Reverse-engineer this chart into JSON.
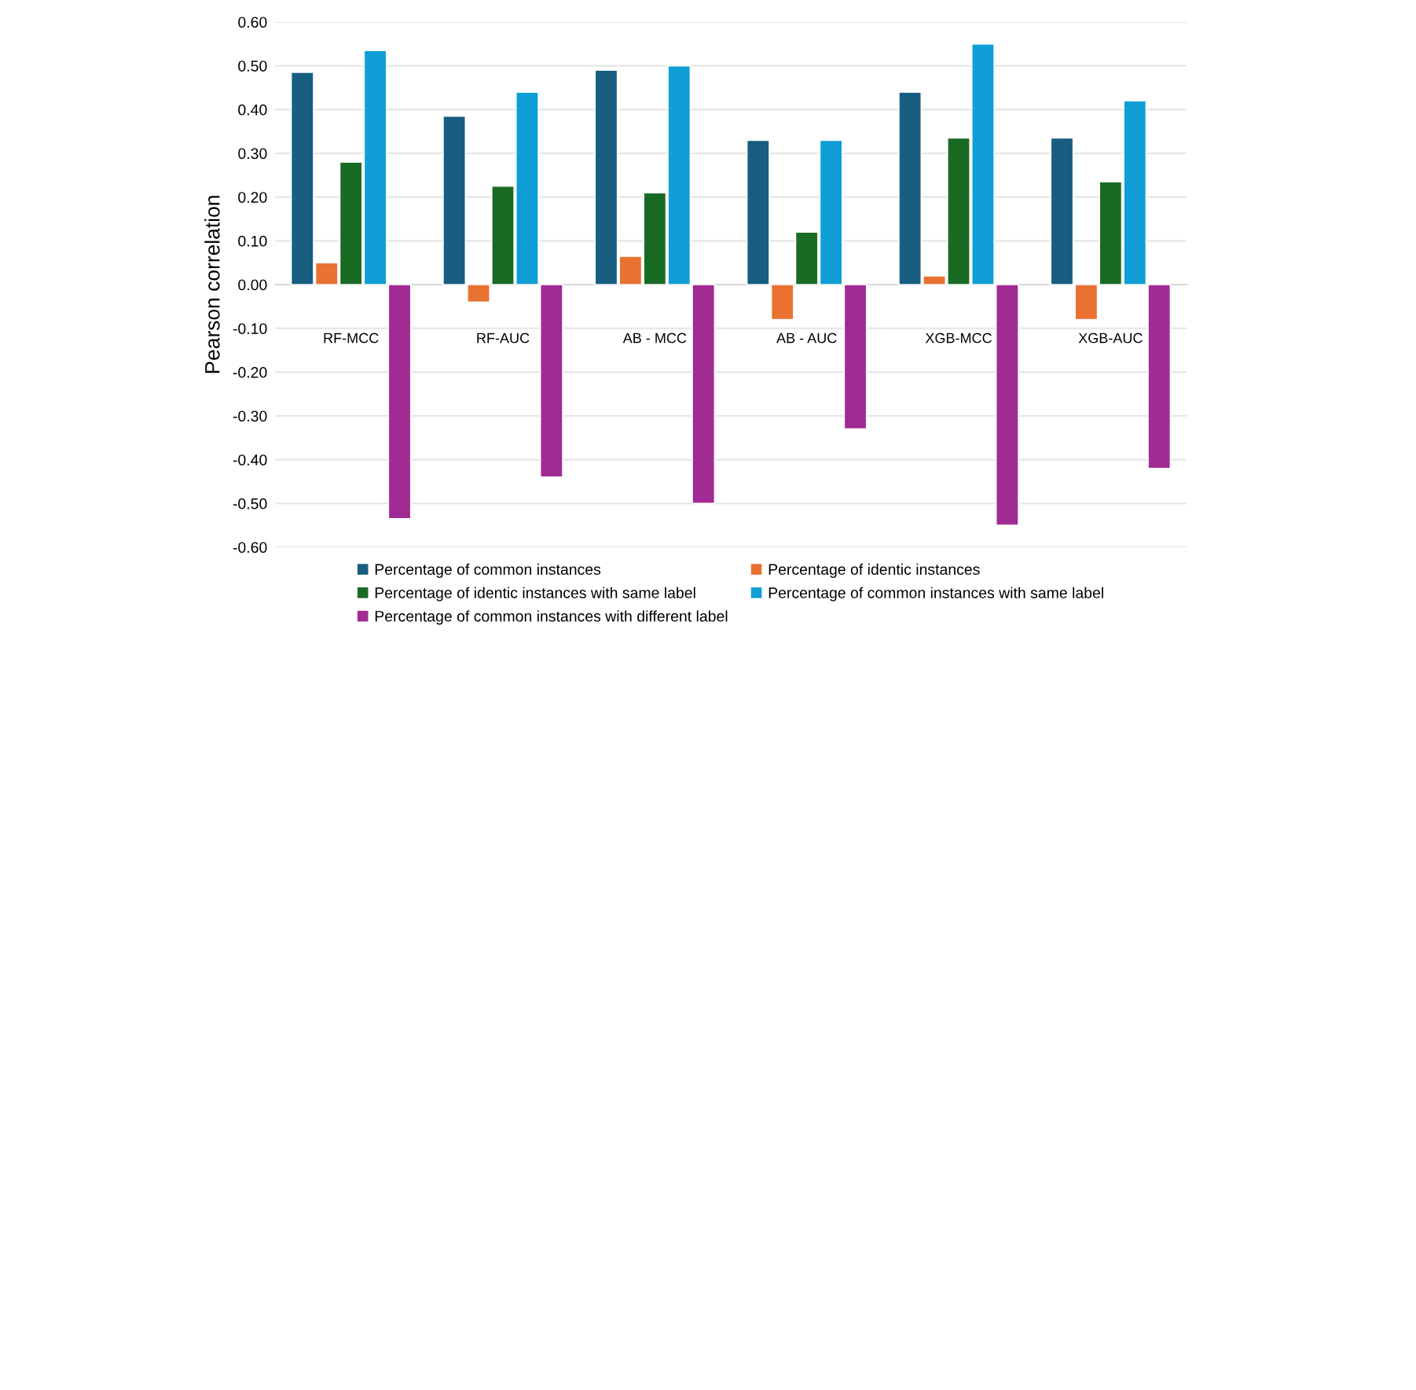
{
  "chart_data": {
    "type": "bar",
    "ylabel": "Pearson correlation",
    "categories": [
      "RF-MCC",
      "RF-AUC",
      "AB - MCC",
      "AB - AUC",
      "XGB-MCC",
      "XGB-AUC"
    ],
    "series": [
      {
        "name": "Percentage of common instances",
        "color": "#175e80",
        "values": [
          0.485,
          0.385,
          0.49,
          0.33,
          0.44,
          0.335
        ]
      },
      {
        "name": "Percentage of identic instances",
        "color": "#e97132",
        "values": [
          0.05,
          -0.04,
          0.065,
          -0.08,
          0.02,
          -0.08
        ]
      },
      {
        "name": "Percentage of identic instances with same label",
        "color": "#196b24",
        "values": [
          0.28,
          0.225,
          0.21,
          0.12,
          0.335,
          0.235
        ]
      },
      {
        "name": "Percentage of common instances with same label",
        "color": "#0f9ed5",
        "values": [
          0.535,
          0.44,
          0.5,
          0.33,
          0.55,
          0.42
        ]
      },
      {
        "name": "Percentage of common instances with different label",
        "color": "#a02b93",
        "values": [
          -0.535,
          -0.44,
          -0.5,
          -0.33,
          -0.55,
          -0.42
        ]
      }
    ],
    "ylim": [
      -0.6,
      0.6
    ],
    "yticks": [
      {
        "value": -0.6,
        "label": "-0.60"
      },
      {
        "value": -0.5,
        "label": "-0.50"
      },
      {
        "value": -0.4,
        "label": "-0.40"
      },
      {
        "value": -0.3,
        "label": "-0.30"
      },
      {
        "value": -0.2,
        "label": "-0.20"
      },
      {
        "value": -0.1,
        "label": "-0.10"
      },
      {
        "value": 0,
        "label": "0.00"
      },
      {
        "value": 0.1,
        "label": "0.10"
      },
      {
        "value": 0.2,
        "label": "0.20"
      },
      {
        "value": 0.3,
        "label": "0.30"
      },
      {
        "value": 0.4,
        "label": "0.40"
      },
      {
        "value": 0.5,
        "label": "0.50"
      },
      {
        "value": 0.6,
        "label": "0.60"
      }
    ],
    "grid": "y",
    "legend": "bottom"
  }
}
